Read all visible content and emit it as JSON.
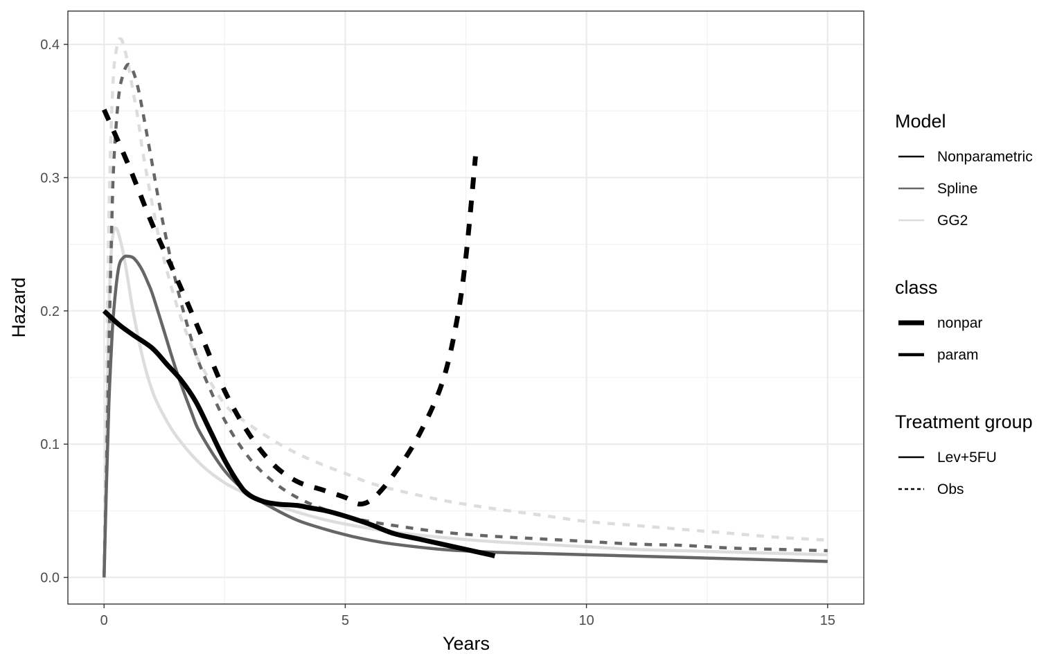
{
  "chart_data": {
    "type": "line",
    "xlabel": "Years",
    "ylabel": "Hazard",
    "xlim": [
      -0.75,
      15.75
    ],
    "ylim": [
      -0.02,
      0.425
    ],
    "x_ticks": [
      0,
      5,
      10,
      15
    ],
    "x_tick_labels": [
      "0",
      "5",
      "10",
      "15"
    ],
    "y_ticks": [
      0.0,
      0.1,
      0.2,
      0.3,
      0.4
    ],
    "y_tick_labels": [
      "0.0",
      "0.1",
      "0.2",
      "0.3",
      "0.4"
    ],
    "grid": true,
    "legend_position": "right",
    "legends": [
      {
        "title": "Model",
        "kind": "color",
        "items": [
          {
            "label": "Nonparametric",
            "color": "#000000"
          },
          {
            "label": "Spline",
            "color": "#666666"
          },
          {
            "label": "GG2",
            "color": "#dddddd"
          }
        ]
      },
      {
        "title": "class",
        "kind": "width",
        "items": [
          {
            "label": "nonpar",
            "width": 7
          },
          {
            "label": "param",
            "width": 4.5
          }
        ]
      },
      {
        "title": "Treatment group",
        "kind": "linetype",
        "items": [
          {
            "label": "Lev+5FU",
            "dash": "solid"
          },
          {
            "label": "Obs",
            "dash": "dashed"
          }
        ]
      }
    ],
    "series": [
      {
        "model": "GG2",
        "class": "param",
        "group": "Obs",
        "color": "#dddddd",
        "width": 4.5,
        "dash": "dashed",
        "x": [
          0,
          0.05,
          0.1,
          0.15,
          0.2,
          0.25,
          0.3,
          0.35,
          0.4,
          0.5,
          0.6,
          0.7,
          0.8,
          1.0,
          1.2,
          1.5,
          1.8,
          2.0,
          2.5,
          3.0,
          3.5,
          4.0,
          4.5,
          5.0,
          5.5,
          6.0,
          7.0,
          8.0,
          9.0,
          10.0,
          11.0,
          12.0,
          13.0,
          14.0,
          15.0
        ],
        "y": [
          0,
          0.15,
          0.27,
          0.34,
          0.38,
          0.395,
          0.403,
          0.404,
          0.4,
          0.385,
          0.365,
          0.345,
          0.32,
          0.28,
          0.245,
          0.205,
          0.175,
          0.16,
          0.13,
          0.115,
          0.103,
          0.093,
          0.085,
          0.078,
          0.071,
          0.066,
          0.058,
          0.052,
          0.047,
          0.042,
          0.039,
          0.036,
          0.033,
          0.03,
          0.028
        ]
      },
      {
        "model": "GG2",
        "class": "param",
        "group": "Lev+5FU",
        "color": "#dddddd",
        "width": 4.5,
        "dash": "solid",
        "x": [
          0,
          0.05,
          0.1,
          0.15,
          0.2,
          0.25,
          0.3,
          0.4,
          0.5,
          0.6,
          0.8,
          1.0,
          1.2,
          1.5,
          2.0,
          2.5,
          3.0,
          3.5,
          4.0,
          4.5,
          5.0,
          6.0,
          7.0,
          8.0,
          9.0,
          10.0,
          11.0,
          12.0,
          13.0,
          14.0,
          15.0
        ],
        "y": [
          0,
          0.1,
          0.2,
          0.245,
          0.26,
          0.262,
          0.258,
          0.243,
          0.222,
          0.2,
          0.165,
          0.14,
          0.124,
          0.106,
          0.085,
          0.071,
          0.062,
          0.055,
          0.049,
          0.044,
          0.04,
          0.034,
          0.03,
          0.027,
          0.025,
          0.023,
          0.021,
          0.02,
          0.019,
          0.018,
          0.017
        ]
      },
      {
        "model": "Spline",
        "class": "param",
        "group": "Obs",
        "color": "#666666",
        "width": 4.5,
        "dash": "dashed",
        "x": [
          0,
          0.05,
          0.1,
          0.15,
          0.2,
          0.3,
          0.4,
          0.5,
          0.6,
          0.7,
          0.8,
          1.0,
          1.2,
          1.5,
          1.8,
          2.0,
          2.5,
          3.0,
          3.5,
          4.0,
          4.5,
          5.0,
          5.5,
          6.0,
          7.0,
          8.0,
          9.0,
          10.0,
          11.0,
          12.0,
          13.0,
          14.0,
          15.0
        ],
        "y": [
          0,
          0.08,
          0.17,
          0.25,
          0.31,
          0.36,
          0.378,
          0.385,
          0.38,
          0.368,
          0.35,
          0.31,
          0.27,
          0.22,
          0.18,
          0.158,
          0.118,
          0.09,
          0.072,
          0.06,
          0.052,
          0.046,
          0.042,
          0.039,
          0.034,
          0.031,
          0.029,
          0.027,
          0.025,
          0.024,
          0.022,
          0.021,
          0.02
        ]
      },
      {
        "model": "Spline",
        "class": "param",
        "group": "Lev+5FU",
        "color": "#666666",
        "width": 4.5,
        "dash": "solid",
        "x": [
          0,
          0.05,
          0.1,
          0.15,
          0.2,
          0.3,
          0.4,
          0.5,
          0.6,
          0.7,
          0.8,
          0.9,
          1.0,
          1.2,
          1.5,
          1.8,
          2.0,
          2.5,
          3.0,
          3.5,
          4.0,
          4.5,
          5.0,
          5.5,
          6.0,
          7.0,
          8.0,
          9.0,
          10.0,
          11.0,
          12.0,
          13.0,
          14.0,
          15.0
        ],
        "y": [
          0,
          0.07,
          0.13,
          0.17,
          0.2,
          0.232,
          0.24,
          0.241,
          0.24,
          0.236,
          0.23,
          0.222,
          0.213,
          0.19,
          0.155,
          0.125,
          0.108,
          0.08,
          0.063,
          0.052,
          0.043,
          0.037,
          0.032,
          0.028,
          0.025,
          0.021,
          0.019,
          0.018,
          0.017,
          0.016,
          0.015,
          0.014,
          0.013,
          0.012
        ]
      },
      {
        "model": "Nonparametric",
        "class": "nonpar",
        "group": "Obs",
        "color": "#000000",
        "width": 7,
        "dash": "dashed",
        "x": [
          0,
          0.5,
          1.0,
          1.5,
          2.0,
          2.5,
          3.0,
          3.5,
          4.0,
          4.5,
          5.0,
          5.3,
          5.6,
          6.0,
          6.5,
          7.0,
          7.3,
          7.5,
          7.7
        ],
        "y": [
          0.351,
          0.31,
          0.265,
          0.225,
          0.183,
          0.14,
          0.108,
          0.085,
          0.072,
          0.066,
          0.06,
          0.055,
          0.06,
          0.077,
          0.105,
          0.145,
          0.19,
          0.24,
          0.316
        ]
      },
      {
        "model": "Nonparametric",
        "class": "nonpar",
        "group": "Lev+5FU",
        "color": "#000000",
        "width": 7,
        "dash": "solid",
        "x": [
          0,
          0.3,
          0.6,
          1.0,
          1.3,
          1.6,
          1.9,
          2.2,
          2.5,
          2.8,
          3.0,
          3.3,
          3.6,
          4.0,
          4.3,
          4.6,
          5.0,
          5.5,
          6.0,
          6.5,
          7.0,
          7.5,
          8.0,
          8.1
        ],
        "y": [
          0.2,
          0.19,
          0.182,
          0.172,
          0.16,
          0.148,
          0.132,
          0.11,
          0.088,
          0.07,
          0.062,
          0.057,
          0.055,
          0.054,
          0.052,
          0.05,
          0.046,
          0.04,
          0.033,
          0.029,
          0.025,
          0.021,
          0.017,
          0.016
        ]
      }
    ]
  }
}
